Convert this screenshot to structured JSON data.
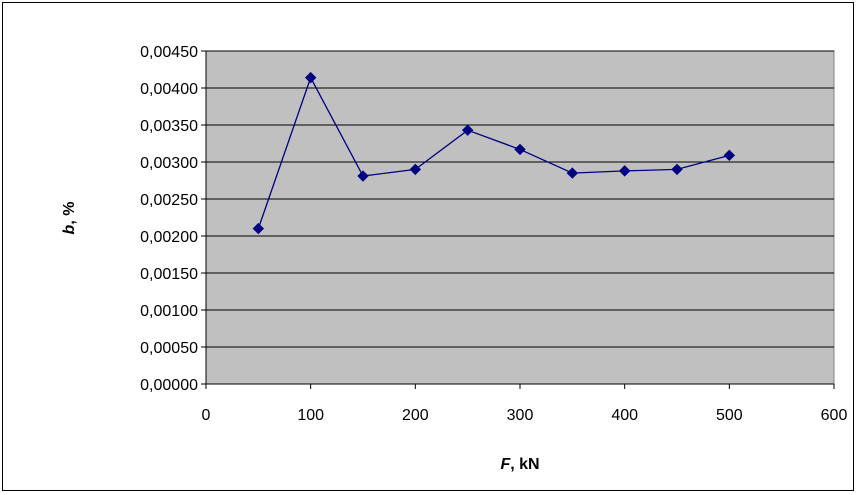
{
  "chart_data": {
    "type": "line",
    "title": "",
    "xlabel": {
      "var": "F",
      "unit": ", kN"
    },
    "ylabel": {
      "var": "b",
      "unit": ", %"
    },
    "xlim": [
      0,
      600
    ],
    "ylim": [
      0,
      0.0045
    ],
    "x_ticks": [
      "0",
      "100",
      "200",
      "300",
      "400",
      "500",
      "600"
    ],
    "y_ticks": [
      "0,00000",
      "0,00050",
      "0,00100",
      "0,00150",
      "0,00200",
      "0,00250",
      "0,00300",
      "0,00350",
      "0,00400",
      "0,00450"
    ],
    "grid": "horizontal",
    "legend": "none",
    "series": [
      {
        "x": [
          50,
          100,
          150,
          200,
          250,
          300,
          350,
          400,
          450,
          500
        ],
        "y": [
          0.0021,
          0.00414,
          0.00281,
          0.0029,
          0.00343,
          0.00317,
          0.00285,
          0.00288,
          0.0029,
          0.00309
        ],
        "marker": "diamond",
        "color": "#000080"
      }
    ],
    "colors": {
      "plot_background": "#c0c0c0",
      "line": "#000080",
      "gridline": "#000000"
    }
  }
}
